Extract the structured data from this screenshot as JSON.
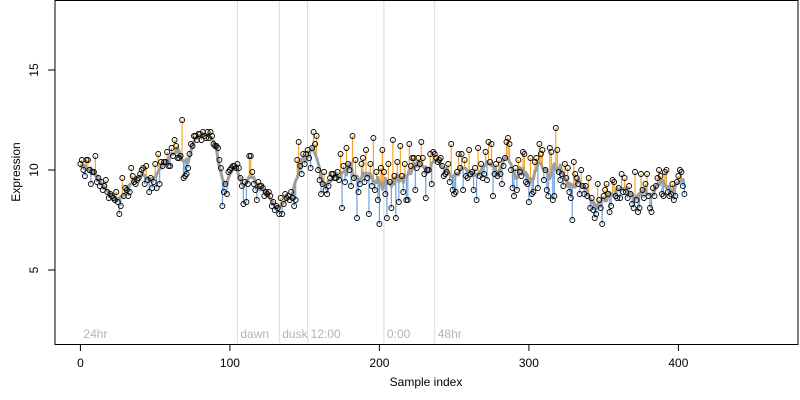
{
  "chart_data": {
    "type": "scatter",
    "title": "",
    "xlabel": "Sample index",
    "ylabel": "Expression",
    "xlim": [
      -17,
      480
    ],
    "ylim": [
      1.3,
      18.5
    ],
    "xticks": [
      0,
      100,
      200,
      300,
      400
    ],
    "yticks": [
      5,
      10,
      15
    ],
    "grid": false,
    "legend": "none",
    "colors": {
      "above": "#f5a623",
      "below": "#6fa0dc",
      "trend": "#9e9e9e",
      "marker": "#000000",
      "event_line": "#d9d9d9",
      "event_label": "#b3b3b3"
    },
    "events": [
      {
        "x": 0,
        "label": "24hr"
      },
      {
        "x": 105,
        "label": "dawn"
      },
      {
        "x": 133,
        "label": "dusk"
      },
      {
        "x": 152,
        "label": "12:00"
      },
      {
        "x": 203,
        "label": "0:00"
      },
      {
        "x": 237,
        "label": "48hr"
      }
    ],
    "observed": [
      10.3,
      10.5,
      10.0,
      9.7,
      10.5,
      10.5,
      10.0,
      9.3,
      9.9,
      9.9,
      10.7,
      9.4,
      9.6,
      9.2,
      9.4,
      9.0,
      9.2,
      9.5,
      8.9,
      8.6,
      8.8,
      8.7,
      8.6,
      8.5,
      8.9,
      8.4,
      7.8,
      8.2,
      9.6,
      8.7,
      9.1,
      9.0,
      8.7,
      8.9,
      10.1,
      9.7,
      9.4,
      9.3,
      9.5,
      9.6,
      9.8,
      10.0,
      10.1,
      9.3,
      10.2,
      9.5,
      8.9,
      9.6,
      9.1,
      9.4,
      10.3,
      9.1,
      10.8,
      9.3,
      10.4,
      10.2,
      10.4,
      10.4,
      10.9,
      10.2,
      10.2,
      11.1,
      10.7,
      11.5,
      11.2,
      10.6,
      10.6,
      10.7,
      12.5,
      9.6,
      9.7,
      9.8,
      10.1,
      10.8,
      11.3,
      11.2,
      11.7,
      11.7,
      11.5,
      11.8,
      11.8,
      11.5,
      11.9,
      11.7,
      11.6,
      11.9,
      11.6,
      11.9,
      11.7,
      11.3,
      11.2,
      11.2,
      11.1,
      10.5,
      10.1,
      8.2,
      8.9,
      9.3,
      8.8,
      9.9,
      10.0,
      10.1,
      10.2,
      10.2,
      10.1,
      10.3,
      10.1,
      9.6,
      9.2,
      8.3,
      9.4,
      8.4,
      9.3,
      10.7,
      10.7,
      9.9,
      9.3,
      9.0,
      8.5,
      9.4,
      9.2,
      9.2,
      9.1,
      8.7,
      8.9,
      8.8,
      8.9,
      8.7,
      8.2,
      8.4,
      8.0,
      8.2,
      8.1,
      7.8,
      8.6,
      7.8,
      8.3,
      8.8,
      8.6,
      8.7,
      8.5,
      8.9,
      8.6,
      8.2,
      8.5,
      10.5,
      11.4,
      10.2,
      9.8,
      10.8,
      10.3,
      10.8,
      11.0,
      10.6,
      10.1,
      11.1,
      11.9,
      11.3,
      11.7,
      10.0,
      9.5,
      8.8,
      9.3,
      9.9,
      9.0,
      8.8,
      9.2,
      9.6,
      9.8,
      9.8,
      9.6,
      9.6,
      9.9,
      9.5,
      10.8,
      8.1,
      10.2,
      9.4,
      11.1,
      10.3,
      10.0,
      9.2,
      11.7,
      9.6,
      10.5,
      7.6,
      8.9,
      9.3,
      10.3,
      10.6,
      9.4,
      11.0,
      9.6,
      7.8,
      10.3,
      9.2,
      11.6,
      9.0,
      9.9,
      8.5,
      7.3,
      10.1,
      11.0,
      9.9,
      8.8,
      7.6,
      10.3,
      9.4,
      8.1,
      11.5,
      9.7,
      7.6,
      10.4,
      8.4,
      11.2,
      9.7,
      8.9,
      10.3,
      8.5,
      8.5,
      11.3,
      10.2,
      10.6,
      10.6,
      9.0,
      10.1,
      10.6,
      10.3,
      11.4,
      10.6,
      9.8,
      8.6,
      10.0,
      10.0,
      10.8,
      9.3,
      10.9,
      10.8,
      10.6,
      10.4,
      10.5,
      10.6,
      10.2,
      9.7,
      9.8,
      9.9,
      10.3,
      9.4,
      11.3,
      9.0,
      8.8,
      8.9,
      9.9,
      10.8,
      10.1,
      10.8,
      9.0,
      10.5,
      9.7,
      9.6,
      11.0,
      9.8,
      9.9,
      9.0,
      10.1,
      8.5,
      11.1,
      9.7,
      10.3,
      9.6,
      9.8,
      10.9,
      9.5,
      11.4,
      10.4,
      11.3,
      8.7,
      9.8,
      10.3,
      9.7,
      10.5,
      9.8,
      9.3,
      10.2,
      10.6,
      11.4,
      11.6,
      11.3,
      10.0,
      9.1,
      8.7,
      10.1,
      9.0,
      10.5,
      9.9,
      9.7,
      10.9,
      10.8,
      9.4,
      9.3,
      8.4,
      10.6,
      8.8,
      8.9,
      10.4,
      10.6,
      9.1,
      11.3,
      10.8,
      11.0,
      9.5,
      10.0,
      9.0,
      8.7,
      11.1,
      10.9,
      8.5,
      8.7,
      12.1,
      11.0,
      9.9,
      9.5,
      9.8,
      9.2,
      10.3,
      9.6,
      10.1,
      8.9,
      8.6,
      7.5,
      10.4,
      9.8,
      9.6,
      9.3,
      8.8,
      10.0,
      9.2,
      8.8,
      9.2,
      8.7,
      9.6,
      8.1,
      8.6,
      8.0,
      7.6,
      7.8,
      9.3,
      8.5,
      8.1,
      7.3,
      8.7,
      9.0,
      9.3,
      8.8,
      7.9,
      8.2,
      9.5,
      9.4,
      8.7,
      8.6,
      9.1,
      8.6,
      9.8,
      8.9,
      9.6,
      8.9,
      8.6,
      9.2,
      8.8,
      8.3,
      8.1,
      9.9,
      8.5,
      7.9,
      8.1,
      9.8,
      9.0,
      8.6,
      9.3,
      9.8,
      8.7,
      8.1,
      7.9,
      9.1,
      8.7,
      9.2,
      9.6,
      10.0,
      9.7,
      8.8,
      8.7,
      9.9,
      10.0,
      8.9,
      8.7,
      8.8,
      9.3,
      8.5,
      8.7,
      9.4,
      9.7,
      10.0,
      9.9,
      9.2,
      8.8
    ]
  }
}
